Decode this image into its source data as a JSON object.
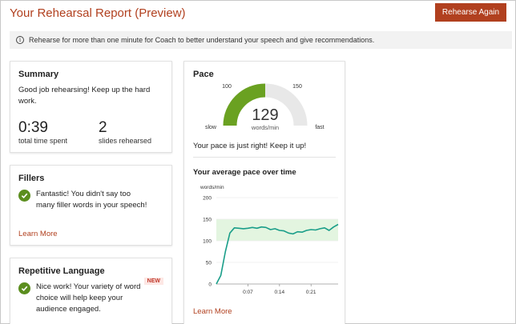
{
  "header": {
    "title": "Your Rehearsal Report (Preview)",
    "rehearse_button": "Rehearse Again"
  },
  "info": {
    "icon": "info-icon",
    "text": "Rehearse for more than one minute for Coach to better understand your speech and give recommendations."
  },
  "summary": {
    "title": "Summary",
    "message": "Good job rehearsing! Keep up the hard work.",
    "time_value": "0:39",
    "time_label": "total time spent",
    "slides_value": "2",
    "slides_label": "slides rehearsed"
  },
  "fillers": {
    "title": "Fillers",
    "message": "Fantastic! You didn't say too many filler words in your speech!",
    "learn_more": "Learn More"
  },
  "repetitive": {
    "title": "Repetitive Language",
    "badge": "NEW",
    "message": "Nice work! Your variety of word choice will help keep your audience engaged."
  },
  "pace": {
    "title": "Pace",
    "value": "129",
    "unit": "words/min",
    "gauge_min_label": "100",
    "gauge_max_label": "150",
    "slow_label": "slow",
    "fast_label": "fast",
    "message": "Your pace is just right! Keep it up!",
    "avg_title": "Your average pace over time",
    "learn_more": "Learn More"
  },
  "colors": {
    "accent": "#b1401f",
    "gauge_fill": "#6aa121",
    "gauge_track": "#e8e8e8",
    "line": "#1a9e89",
    "band": "#e3f5e0",
    "check": "#5b8e1e"
  },
  "chart_data": {
    "type": "line",
    "ylabel": "words/min",
    "ylim": [
      0,
      200
    ],
    "yticks": [
      "0",
      "50",
      "100",
      "150",
      "200"
    ],
    "xticks": [
      "0:07",
      "0:14",
      "0:21"
    ],
    "band": [
      100,
      150
    ],
    "x": [
      0,
      1,
      2,
      3,
      4,
      5,
      6,
      7,
      8,
      9,
      10,
      11,
      12,
      13,
      14,
      15,
      16,
      17,
      18,
      19,
      20,
      21,
      22,
      23,
      24,
      25,
      26,
      27
    ],
    "series": [
      {
        "values": [
          0,
          20,
          75,
          118,
          130,
          129,
          128,
          129,
          131,
          129,
          132,
          131,
          126,
          128,
          124,
          123,
          118,
          116,
          121,
          120,
          124,
          126,
          125,
          128,
          130,
          124,
          132,
          138
        ]
      }
    ]
  }
}
